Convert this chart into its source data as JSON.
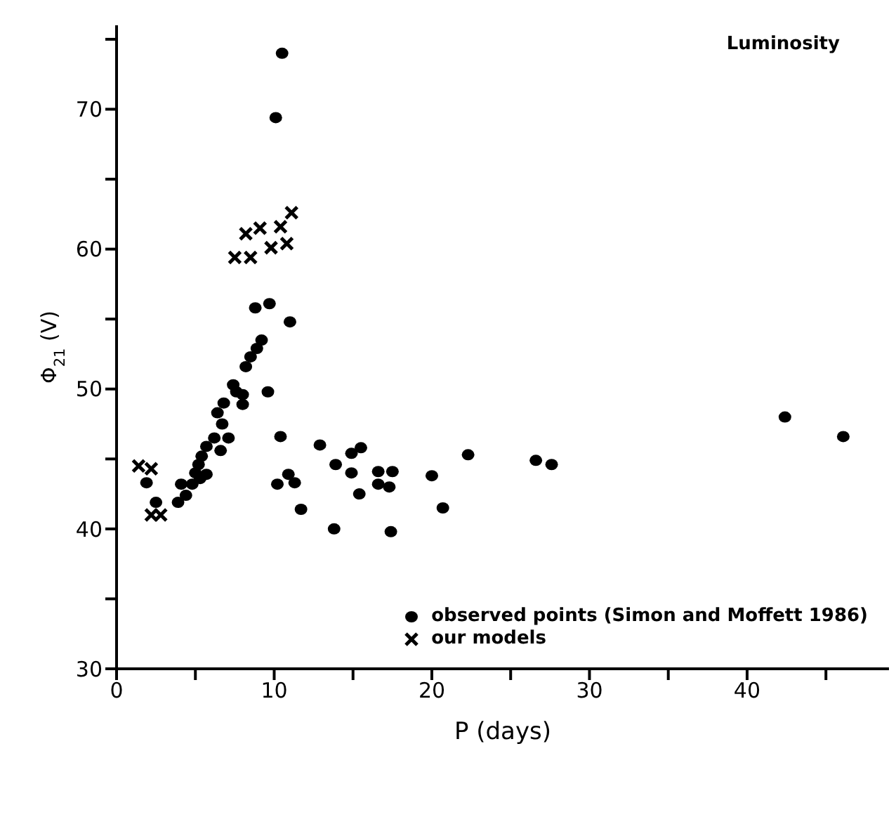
{
  "chart_data": {
    "type": "scatter",
    "title": "Luminosity",
    "xlabel": "P (days)",
    "ylabel": "Φ$_{21}$ (V)",
    "xlim": [
      0,
      49
    ],
    "xticks": [
      0,
      {
        "value": 5,
        "label": null
      },
      10,
      {
        "value": 15,
        "label": null
      },
      20,
      {
        "value": 25,
        "label": null
      },
      30,
      {
        "value": 35,
        "label": null
      },
      40,
      {
        "value": 45,
        "label": null
      }
    ],
    "ylim": [
      30,
      76
    ],
    "yticks": [
      30,
      {
        "value": 35,
        "label": null
      },
      40,
      {
        "value": 45,
        "label": null
      },
      50,
      {
        "value": 55,
        "label": null
      },
      60,
      {
        "value": 65,
        "label": null
      },
      70,
      {
        "value": 75,
        "label": null
      }
    ],
    "legend": "bottom right",
    "series": [
      {
        "name": "observed points (Simon and Moffett 1986)",
        "color": "#000000",
        "marker": "circle",
        "x": [
          10.5,
          10.1,
          8.8,
          9.7,
          11.0,
          9.2,
          8.9,
          8.5,
          8.2,
          9.6,
          7.4,
          7.6,
          8.0,
          6.8,
          8.0,
          6.4,
          6.7,
          7.1,
          6.2,
          6.6,
          5.7,
          5.4,
          5.2,
          5.7,
          5.0,
          4.8,
          4.1,
          4.4,
          3.9,
          5.3,
          10.4,
          12.9,
          10.9,
          11.3,
          10.2,
          11.7,
          1.9,
          2.5,
          13.9,
          14.9,
          15.5,
          14.9,
          16.6,
          17.5,
          16.6,
          17.3,
          15.4,
          13.8,
          17.4,
          20.0,
          20.7,
          22.3,
          26.6,
          27.6,
          42.4,
          46.1
        ],
        "values": [
          74.0,
          69.4,
          55.8,
          56.1,
          54.8,
          53.5,
          52.9,
          52.3,
          51.6,
          49.8,
          50.3,
          49.8,
          49.6,
          49.0,
          48.9,
          48.3,
          47.5,
          46.5,
          46.5,
          45.6,
          45.9,
          45.2,
          44.6,
          43.9,
          44.0,
          43.2,
          43.2,
          42.4,
          41.9,
          43.6,
          46.6,
          46.0,
          43.9,
          43.3,
          43.2,
          41.4,
          43.3,
          41.9,
          44.6,
          45.4,
          45.8,
          44.0,
          44.1,
          44.1,
          43.2,
          43.0,
          42.5,
          40.0,
          39.8,
          43.8,
          41.5,
          45.3,
          44.9,
          44.6,
          48.0,
          46.6
        ]
      },
      {
        "name": "our models",
        "color": "#000000",
        "marker": "cross",
        "x": [
          11.1,
          10.4,
          9.1,
          8.2,
          10.8,
          9.8,
          8.5,
          7.5,
          1.4,
          2.2,
          2.2,
          2.8
        ],
        "values": [
          62.6,
          61.6,
          61.5,
          61.1,
          60.4,
          60.1,
          59.4,
          59.4,
          44.5,
          44.3,
          41.0,
          41.0
        ]
      }
    ]
  }
}
